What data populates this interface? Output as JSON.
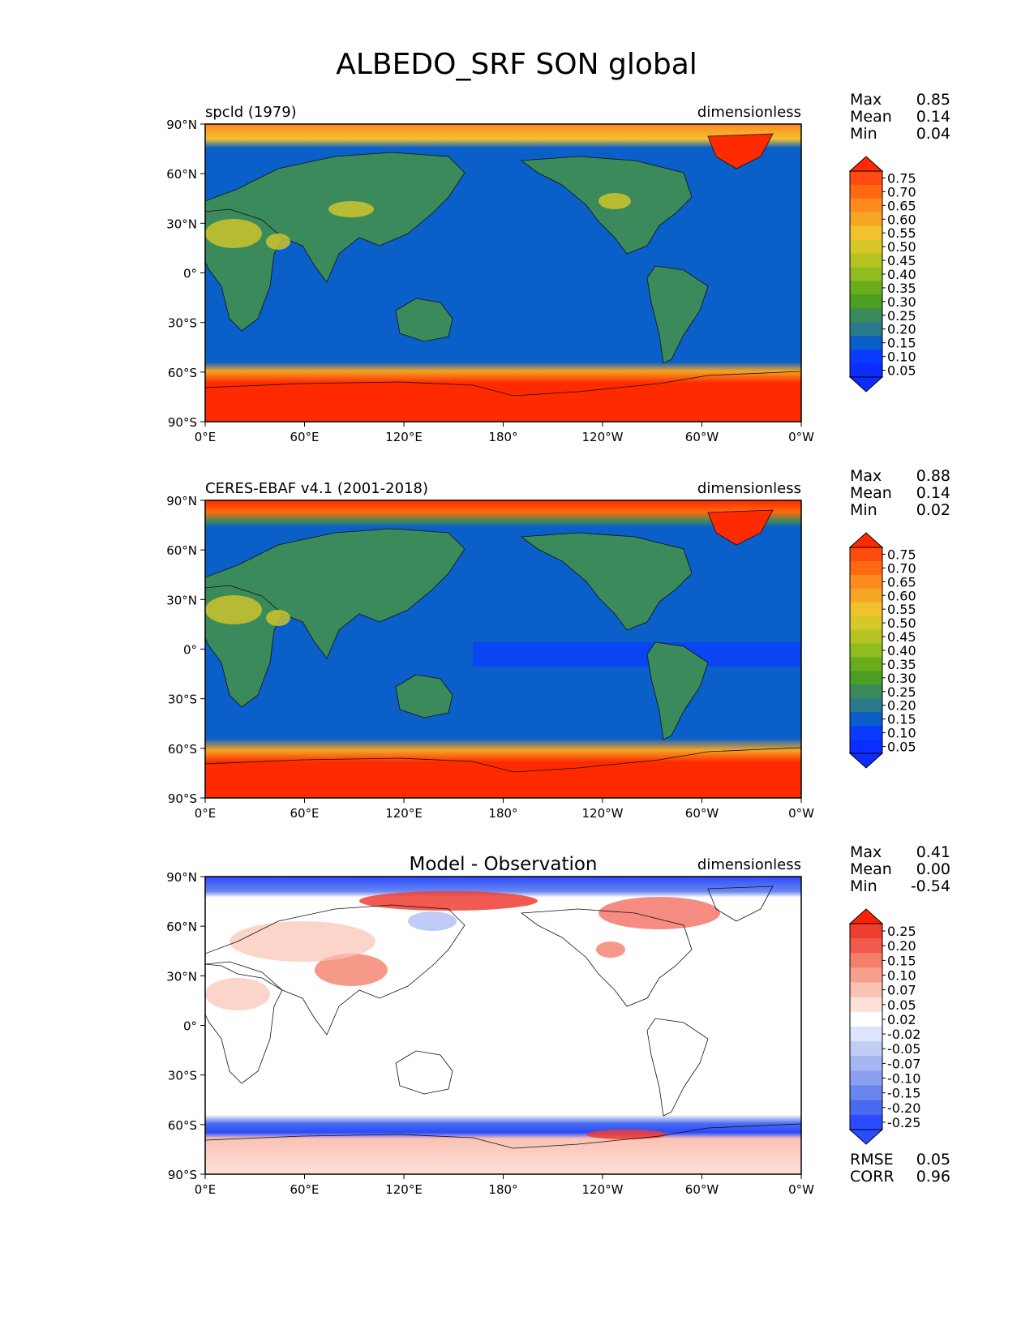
{
  "figure_title": "ALBEDO_SRF SON global",
  "panels": [
    {
      "left_title": "spcld (1979)",
      "center_title": "",
      "units": "dimensionless",
      "stats": [
        {
          "label": "Max",
          "value": "0.85"
        },
        {
          "label": "Mean",
          "value": "0.14"
        },
        {
          "label": "Min",
          "value": "0.04"
        }
      ],
      "colorbar": {
        "levels": [
          "0.75",
          "0.70",
          "0.65",
          "0.60",
          "0.55",
          "0.50",
          "0.45",
          "0.40",
          "0.35",
          "0.30",
          "0.25",
          "0.20",
          "0.15",
          "0.10",
          "0.05"
        ],
        "colors": [
          "#ff2a00",
          "#ff4a10",
          "#ff6a10",
          "#ff8a20",
          "#f5a623",
          "#f2c12e",
          "#d7c82a",
          "#b5c422",
          "#8fbd1f",
          "#6aad1c",
          "#4b9e22",
          "#3a8a5c",
          "#2a7a8c",
          "#0a5fc8",
          "#0a3cff",
          "#0b2dff"
        ]
      },
      "footer": []
    },
    {
      "left_title": "CERES-EBAF v4.1 (2001-2018)",
      "center_title": "",
      "units": "dimensionless",
      "stats": [
        {
          "label": "Max",
          "value": "0.88"
        },
        {
          "label": "Mean",
          "value": "0.14"
        },
        {
          "label": "Min",
          "value": "0.02"
        }
      ],
      "colorbar": {
        "levels": [
          "0.75",
          "0.70",
          "0.65",
          "0.60",
          "0.55",
          "0.50",
          "0.45",
          "0.40",
          "0.35",
          "0.30",
          "0.25",
          "0.20",
          "0.15",
          "0.10",
          "0.05"
        ],
        "colors": [
          "#ff2a00",
          "#ff4a10",
          "#ff6a10",
          "#ff8a20",
          "#f5a623",
          "#f2c12e",
          "#d7c82a",
          "#b5c422",
          "#8fbd1f",
          "#6aad1c",
          "#4b9e22",
          "#3a8a5c",
          "#2a7a8c",
          "#0a5fc8",
          "#0a3cff",
          "#0b2dff"
        ]
      },
      "footer": []
    },
    {
      "left_title": "",
      "center_title": "Model - Observation",
      "units": "dimensionless",
      "stats": [
        {
          "label": "Max",
          "value": "0.41"
        },
        {
          "label": "Mean",
          "value": "0.00"
        },
        {
          "label": "Min",
          "value": "-0.54"
        }
      ],
      "colorbar": {
        "levels": [
          "0.25",
          "0.20",
          "0.15",
          "0.10",
          "0.07",
          "0.05",
          "0.02",
          "-0.02",
          "-0.05",
          "-0.07",
          "-0.10",
          "-0.15",
          "-0.20",
          "-0.25"
        ],
        "colors": [
          "#ff2000",
          "#ef3d32",
          "#f25a4c",
          "#f4806c",
          "#f7a08e",
          "#fac2b4",
          "#fde0d8",
          "#ffffff",
          "#dde4fb",
          "#c2cdf6",
          "#a6b6f2",
          "#8aa0ef",
          "#6a86ee",
          "#4a6bee",
          "#2a4bff"
        ]
      },
      "footer": [
        {
          "label": "RMSE",
          "value": "0.05"
        },
        {
          "label": "CORR",
          "value": "0.96"
        }
      ]
    }
  ],
  "chart_data": [
    {
      "type": "heatmap",
      "title": "spcld (1979)",
      "units": "dimensionless",
      "xlim": [
        0,
        360
      ],
      "ylim": [
        -90,
        90
      ],
      "x_ticks": [
        "0°E",
        "60°E",
        "120°E",
        "180°",
        "120°W",
        "60°W",
        "0°W"
      ],
      "y_ticks": [
        "90°N",
        "60°N",
        "30°N",
        "0°",
        "30°S",
        "60°S",
        "90°S"
      ],
      "stats": {
        "max": 0.85,
        "mean": 0.14,
        "min": 0.04
      }
    },
    {
      "type": "heatmap",
      "title": "CERES-EBAF v4.1 (2001-2018)",
      "units": "dimensionless",
      "xlim": [
        0,
        360
      ],
      "ylim": [
        -90,
        90
      ],
      "x_ticks": [
        "0°E",
        "60°E",
        "120°E",
        "180°",
        "120°W",
        "60°W",
        "0°W"
      ],
      "y_ticks": [
        "90°N",
        "60°N",
        "30°N",
        "0°",
        "30°S",
        "60°S",
        "90°S"
      ],
      "stats": {
        "max": 0.88,
        "mean": 0.14,
        "min": 0.02
      }
    },
    {
      "type": "heatmap",
      "title": "Model - Observation",
      "units": "dimensionless",
      "xlim": [
        0,
        360
      ],
      "ylim": [
        -90,
        90
      ],
      "x_ticks": [
        "0°E",
        "60°E",
        "120°E",
        "180°",
        "120°W",
        "60°W",
        "0°W"
      ],
      "y_ticks": [
        "90°N",
        "60°N",
        "30°N",
        "0°",
        "30°S",
        "60°S",
        "90°S"
      ],
      "stats": {
        "max": 0.41,
        "mean": 0.0,
        "min": -0.54,
        "rmse": 0.05,
        "corr": 0.96
      }
    }
  ]
}
